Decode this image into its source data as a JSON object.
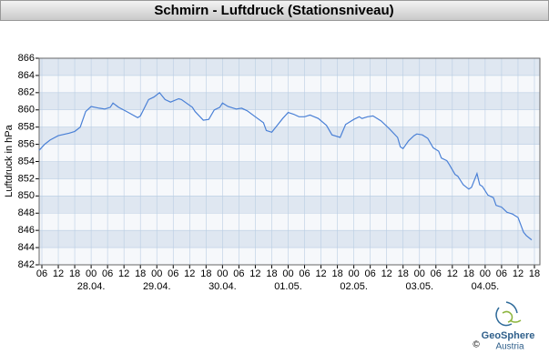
{
  "chart_data": {
    "type": "line",
    "title": "Schmirn - Luftdruck (Stationsniveau)",
    "y_label": "Luftdruck in hPa",
    "logo": {
      "name": "GeoSphere",
      "sub": "Austria",
      "copyright": "©"
    },
    "x": [
      5,
      7,
      9,
      12,
      16,
      18,
      20,
      22,
      24,
      27,
      29,
      31,
      32,
      34,
      37,
      41,
      42,
      45,
      47,
      49,
      51,
      53,
      56,
      57,
      61,
      62,
      65,
      67,
      69,
      71,
      72,
      74,
      77,
      79,
      81,
      84,
      87,
      88,
      90,
      92,
      94,
      96,
      98,
      100,
      102,
      104,
      107,
      110,
      112,
      115,
      117,
      120,
      122,
      123,
      125,
      127,
      130,
      133,
      136,
      137,
      138,
      140,
      142,
      143,
      145,
      147,
      149,
      151,
      152,
      154,
      155,
      157,
      158,
      160,
      162,
      163,
      165,
      166,
      167,
      169,
      171,
      172,
      174,
      176,
      178,
      180,
      182,
      183,
      185
    ],
    "series": [
      {
        "name": "Luftdruck",
        "color": "#4a80d6",
        "values": [
          855.3,
          856,
          856.5,
          857,
          857.3,
          857.5,
          858,
          859.8,
          860.4,
          860.2,
          860.1,
          860.3,
          860.8,
          860.3,
          859.8,
          859.1,
          859.3,
          861.2,
          861.5,
          862,
          861.2,
          860.9,
          861.3,
          861.2,
          860.3,
          859.8,
          858.8,
          858.9,
          860,
          860.3,
          860.8,
          860.4,
          860.1,
          860.2,
          859.9,
          859.2,
          858.5,
          857.6,
          857.4,
          858.2,
          859,
          859.7,
          859.5,
          859.2,
          859.2,
          859.4,
          859,
          858.2,
          857.1,
          856.8,
          858.3,
          858.9,
          859.2,
          859,
          859.2,
          859.3,
          858.7,
          857.8,
          856.8,
          855.7,
          855.5,
          856.4,
          857,
          857.2,
          857.1,
          856.7,
          855.6,
          855.2,
          854.4,
          854.1,
          853.6,
          852.5,
          852.3,
          851.3,
          850.8,
          851,
          852.6,
          851.3,
          851.1,
          850.1,
          849.8,
          848.9,
          848.7,
          848.1,
          847.9,
          847.5,
          845.8,
          845.4,
          844.9
        ]
      }
    ],
    "xlim": [
      5,
      188
    ],
    "xticks": [
      {
        "value": 6,
        "label": "06"
      },
      {
        "value": 12,
        "label": "12"
      },
      {
        "value": 18,
        "label": "18"
      },
      {
        "value": 24,
        "label": "00"
      },
      {
        "value": 30,
        "label": "06"
      },
      {
        "value": 36,
        "label": "12"
      },
      {
        "value": 42,
        "label": "18"
      },
      {
        "value": 48,
        "label": "00"
      },
      {
        "value": 54,
        "label": "06"
      },
      {
        "value": 60,
        "label": "12"
      },
      {
        "value": 66,
        "label": "18"
      },
      {
        "value": 72,
        "label": "00"
      },
      {
        "value": 78,
        "label": "06"
      },
      {
        "value": 84,
        "label": "12"
      },
      {
        "value": 90,
        "label": "18"
      },
      {
        "value": 96,
        "label": "00"
      },
      {
        "value": 102,
        "label": "06"
      },
      {
        "value": 108,
        "label": "12"
      },
      {
        "value": 114,
        "label": "18"
      },
      {
        "value": 120,
        "label": "00"
      },
      {
        "value": 126,
        "label": "06"
      },
      {
        "value": 132,
        "label": "12"
      },
      {
        "value": 138,
        "label": "18"
      },
      {
        "value": 144,
        "label": "00"
      },
      {
        "value": 150,
        "label": "06"
      },
      {
        "value": 156,
        "label": "12"
      },
      {
        "value": 162,
        "label": "18"
      },
      {
        "value": 168,
        "label": "00"
      },
      {
        "value": 174,
        "label": "06"
      },
      {
        "value": 180,
        "label": "12"
      },
      {
        "value": 186,
        "label": "18"
      }
    ],
    "day_labels": [
      {
        "value": 24,
        "label": "28.04."
      },
      {
        "value": 48,
        "label": "29.04."
      },
      {
        "value": 72,
        "label": "30.04."
      },
      {
        "value": 96,
        "label": "01.05."
      },
      {
        "value": 120,
        "label": "02.05."
      },
      {
        "value": 144,
        "label": "03.05."
      },
      {
        "value": 168,
        "label": "04.05."
      }
    ],
    "ylim": [
      842,
      866
    ],
    "yticks": [
      842,
      844,
      846,
      848,
      850,
      852,
      854,
      856,
      858,
      860,
      862,
      864,
      866
    ],
    "grid": true
  }
}
